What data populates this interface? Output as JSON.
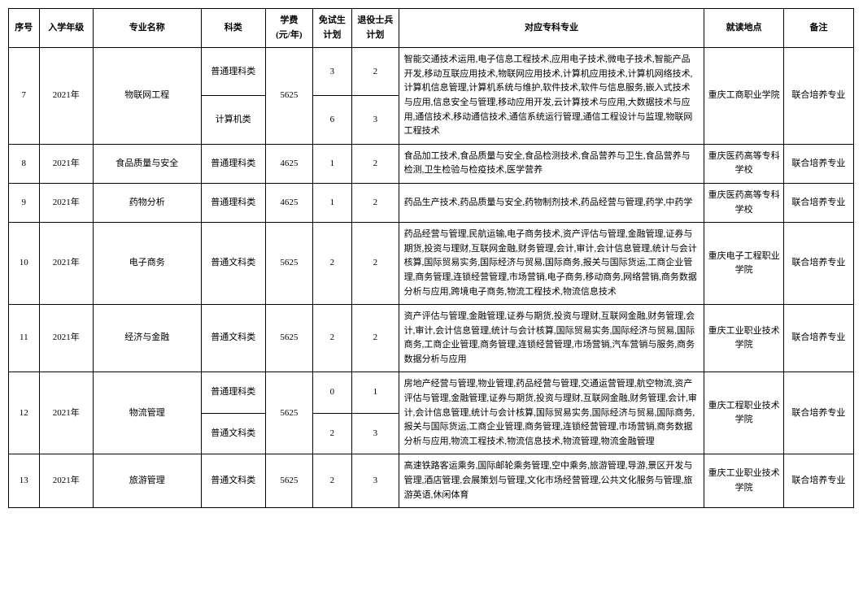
{
  "headers": {
    "seq": "序号",
    "year": "入学年级",
    "major": "专业名称",
    "category": "科类",
    "fee": "学费\n(元/年)",
    "plan1": "免试生\n计划",
    "plan2": "退役士兵\n计划",
    "spec": "对应专科专业",
    "place": "就读地点",
    "notes": "备注"
  },
  "row7": {
    "seq": "7",
    "year": "2021年",
    "major": "物联网工程",
    "cat1": "普通理科类",
    "cat2": "计算机类",
    "fee": "5625",
    "p1a": "3",
    "p2a": "2",
    "p1b": "6",
    "p2b": "3",
    "spec": "智能交通技术运用,电子信息工程技术,应用电子技术,微电子技术,智能产品开发,移动互联应用技术,物联网应用技术,计算机应用技术,计算机网络技术,计算机信息管理,计算机系统与维护,软件技术,软件与信息服务,嵌入式技术与应用,信息安全与管理,移动应用开发,云计算技术与应用,大数据技术与应用,通信技术,移动通信技术,通信系统运行管理,通信工程设计与监理,物联网工程技术",
    "place": "重庆工商职业学院",
    "notes": "联合培养专业"
  },
  "row8": {
    "seq": "8",
    "year": "2021年",
    "major": "食品质量与安全",
    "cat": "普通理科类",
    "fee": "4625",
    "p1": "1",
    "p2": "2",
    "spec": "食品加工技术,食品质量与安全,食品检测技术,食品营养与卫生,食品营养与检测,卫生检验与检疫技术,医学营养",
    "place": "重庆医药高等专科学校",
    "notes": "联合培养专业"
  },
  "row9": {
    "seq": "9",
    "year": "2021年",
    "major": "药物分析",
    "cat": "普通理科类",
    "fee": "4625",
    "p1": "1",
    "p2": "2",
    "spec": "药品生产技术,药品质量与安全,药物制剂技术,药品经营与管理,药学,中药学",
    "place": "重庆医药高等专科学校",
    "notes": "联合培养专业"
  },
  "row10": {
    "seq": "10",
    "year": "2021年",
    "major": "电子商务",
    "cat": "普通文科类",
    "fee": "5625",
    "p1": "2",
    "p2": "2",
    "spec": "药品经营与管理,民航运输,电子商务技术,资产评估与管理,金融管理,证券与期货,投资与理财,互联网金融,财务管理,会计,审计,会计信息管理,统计与会计核算,国际贸易实务,国际经济与贸易,国际商务,报关与国际货运,工商企业管理,商务管理,连锁经营管理,市场营销,电子商务,移动商务,网络营销,商务数据分析与应用,跨境电子商务,物流工程技术,物流信息技术",
    "place": "重庆电子工程职业学院",
    "notes": "联合培养专业"
  },
  "row11": {
    "seq": "11",
    "year": "2021年",
    "major": "经济与金融",
    "cat": "普通文科类",
    "fee": "5625",
    "p1": "2",
    "p2": "2",
    "spec": "资产评估与管理,金融管理,证券与期货,投资与理财,互联网金融,财务管理,会计,审计,会计信息管理,统计与会计核算,国际贸易实务,国际经济与贸易,国际商务,工商企业管理,商务管理,连锁经营管理,市场营销,汽车营销与服务,商务数据分析与应用",
    "place": "重庆工业职业技术学院",
    "notes": "联合培养专业"
  },
  "row12": {
    "seq": "12",
    "year": "2021年",
    "major": "物流管理",
    "cat1": "普通理科类",
    "cat2": "普通文科类",
    "fee": "5625",
    "p1a": "0",
    "p2a": "1",
    "p1b": "2",
    "p2b": "3",
    "spec": "房地产经营与管理,物业管理,药品经营与管理,交通运营管理,航空物流,资产评估与管理,金融管理,证券与期货,投资与理财,互联网金融,财务管理,会计,审计,会计信息管理,统计与会计核算,国际贸易实务,国际经济与贸易,国际商务,报关与国际货运,工商企业管理,商务管理,连锁经营管理,市场营销,商务数据分析与应用,物流工程技术,物流信息技术,物流管理,物流金融管理",
    "place": "重庆工程职业技术学院",
    "notes": "联合培养专业"
  },
  "row13": {
    "seq": "13",
    "year": "2021年",
    "major": "旅游管理",
    "cat": "普通文科类",
    "fee": "5625",
    "p1": "2",
    "p2": "3",
    "spec": "高速铁路客运乘务,国际邮轮乘务管理,空中乘务,旅游管理,导游,景区开发与管理,酒店管理,会展策划与管理,文化市场经营管理,公共文化服务与管理,旅游英语,休闲体育",
    "place": "重庆工业职业技术学院",
    "notes": "联合培养专业"
  }
}
